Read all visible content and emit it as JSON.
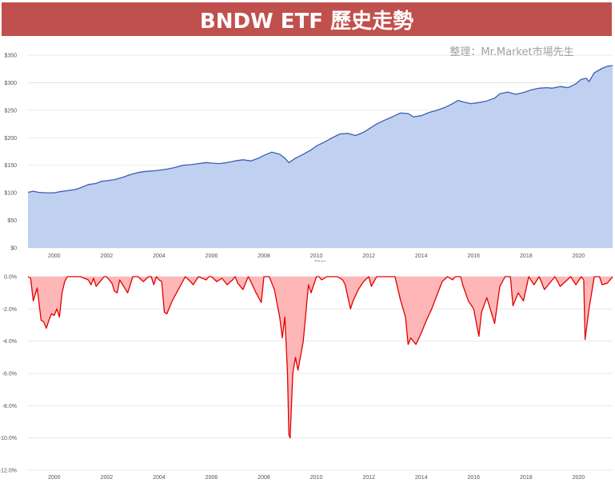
{
  "title": "BNDW ETF 歷史走勢",
  "credit": "整理：Mr.Market市場先生",
  "colors": {
    "title_bg": "#c0504d",
    "price_line": "#3a5fb0",
    "price_fill": "#c0d0f0",
    "dd_line": "#e00000",
    "dd_fill": "#ffb6b6",
    "grid": "#e3e3e3"
  },
  "chart_data": [
    {
      "type": "area",
      "title": "",
      "xlabel": "Year",
      "ylabel": "",
      "xlim": [
        1999.0,
        2021.3
      ],
      "ylim": [
        0,
        350
      ],
      "y_ticks": [
        0,
        50,
        100,
        150,
        200,
        250,
        300,
        350
      ],
      "y_tick_labels": [
        "$0",
        "$50",
        "$100",
        "$150",
        "$200",
        "$250",
        "$300",
        "$350"
      ],
      "x_ticks": [
        2000,
        2002,
        2004,
        2006,
        2008,
        2010,
        2012,
        2014,
        2016,
        2018,
        2020
      ],
      "x_tick_labels": [
        "2000",
        "2002",
        "2004",
        "2006",
        "2008",
        "2010",
        "2012",
        "2014",
        "2016",
        "2018",
        "2020"
      ],
      "grid": true,
      "series": [
        {
          "x": [
            1999.0,
            1999.2,
            1999.4,
            1999.7,
            2000.0,
            2000.2,
            2000.5,
            2000.8,
            2001.0,
            2001.3,
            2001.6,
            2001.8,
            2002.0,
            2002.3,
            2002.6,
            2002.9,
            2003.2,
            2003.5,
            2003.8,
            2004.0,
            2004.3,
            2004.6,
            2004.9,
            2005.2,
            2005.5,
            2005.8,
            2006.0,
            2006.3,
            2006.6,
            2006.9,
            2007.2,
            2007.5,
            2007.8,
            2008.0,
            2008.3,
            2008.6,
            2008.8,
            2008.95,
            2009.2,
            2009.5,
            2009.8,
            2010.0,
            2010.3,
            2010.6,
            2010.9,
            2011.2,
            2011.5,
            2011.8,
            2012.0,
            2012.3,
            2012.6,
            2012.9,
            2013.2,
            2013.5,
            2013.7,
            2014.0,
            2014.3,
            2014.6,
            2014.9,
            2015.2,
            2015.4,
            2015.6,
            2015.9,
            2016.2,
            2016.5,
            2016.8,
            2017.0,
            2017.3,
            2017.6,
            2017.9,
            2018.2,
            2018.5,
            2018.8,
            2019.0,
            2019.3,
            2019.6,
            2019.9,
            2020.1,
            2020.3,
            2020.4,
            2020.6,
            2020.9,
            2021.1,
            2021.3
          ],
          "y": [
            101,
            103,
            101,
            100,
            100,
            102,
            104,
            106,
            109,
            115,
            117,
            121,
            122,
            124,
            128,
            133,
            137,
            139,
            140,
            141,
            143,
            146,
            150,
            151,
            153,
            155,
            154,
            153,
            155,
            158,
            160,
            158,
            163,
            168,
            174,
            170,
            163,
            155,
            163,
            170,
            178,
            185,
            192,
            200,
            207,
            208,
            204,
            210,
            216,
            225,
            232,
            238,
            245,
            244,
            238,
            240,
            246,
            250,
            255,
            262,
            268,
            265,
            262,
            264,
            267,
            272,
            280,
            283,
            279,
            282,
            287,
            290,
            291,
            290,
            293,
            291,
            298,
            306,
            308,
            302,
            318,
            326,
            330,
            331
          ]
        }
      ]
    },
    {
      "type": "area",
      "title": "",
      "xlabel": "",
      "ylabel": "",
      "xlim": [
        1999.0,
        2021.3
      ],
      "ylim": [
        -12,
        0
      ],
      "y_ticks": [
        0,
        -2,
        -4,
        -6,
        -8,
        -10,
        -12
      ],
      "y_tick_labels": [
        "0.0%",
        "-2.0%",
        "-4.0%",
        "-6.0%",
        "-8.0%",
        "-10.0%",
        "-12.0%"
      ],
      "x_ticks": [
        2000,
        2002,
        2004,
        2006,
        2008,
        2010,
        2012,
        2014,
        2016,
        2018,
        2020
      ],
      "x_tick_labels": [
        "2000",
        "2002",
        "2004",
        "2006",
        "2008",
        "2010",
        "2012",
        "2014",
        "2016",
        "2018",
        "2020"
      ],
      "grid": true,
      "series": [
        {
          "x": [
            1999.0,
            1999.1,
            1999.2,
            1999.35,
            1999.5,
            1999.6,
            1999.7,
            1999.8,
            1999.9,
            2000.0,
            2000.1,
            2000.2,
            2000.3,
            2000.4,
            2000.5,
            2000.6,
            2001.0,
            2001.3,
            2001.4,
            2001.5,
            2001.6,
            2001.9,
            2002.0,
            2002.2,
            2002.3,
            2002.4,
            2002.5,
            2002.8,
            2003.0,
            2003.2,
            2003.4,
            2003.6,
            2003.7,
            2003.8,
            2003.9,
            2004.0,
            2004.1,
            2004.2,
            2004.3,
            2004.5,
            2005.0,
            2005.2,
            2005.3,
            2005.5,
            2005.8,
            2005.9,
            2006.0,
            2006.2,
            2006.4,
            2006.6,
            2006.8,
            2006.9,
            2007.0,
            2007.2,
            2007.4,
            2007.5,
            2007.7,
            2007.9,
            2008.0,
            2008.2,
            2008.4,
            2008.6,
            2008.7,
            2008.8,
            2008.9,
            2008.95,
            2009.0,
            2009.1,
            2009.2,
            2009.3,
            2009.5,
            2009.7,
            2009.8,
            2010.0,
            2010.1,
            2010.2,
            2010.4,
            2010.8,
            2011.0,
            2011.1,
            2011.3,
            2011.4,
            2011.6,
            2011.8,
            2012.0,
            2012.1,
            2012.3,
            2013.0,
            2013.2,
            2013.4,
            2013.5,
            2013.6,
            2013.8,
            2014.0,
            2014.2,
            2014.4,
            2014.8,
            2015.0,
            2015.2,
            2015.3,
            2015.5,
            2015.6,
            2015.8,
            2016.0,
            2016.2,
            2016.3,
            2016.5,
            2016.8,
            2017.0,
            2017.2,
            2017.4,
            2017.5,
            2017.7,
            2017.9,
            2018.1,
            2018.3,
            2018.5,
            2018.7,
            2018.9,
            2019.1,
            2019.3,
            2019.5,
            2019.7,
            2019.9,
            2020.1,
            2020.2,
            2020.25,
            2020.4,
            2020.6,
            2020.8,
            2020.9,
            2021.1,
            2021.3
          ],
          "y": [
            0,
            -0.1,
            -1.5,
            -0.7,
            -2.7,
            -2.8,
            -3.2,
            -2.7,
            -2.3,
            -2.4,
            -2.0,
            -2.5,
            -1.0,
            -0.3,
            0,
            0,
            0,
            -0.2,
            -0.5,
            -0.1,
            -0.6,
            0,
            0,
            -0.4,
            -0.9,
            -1.0,
            -0.2,
            -1.0,
            0,
            0,
            -0.3,
            0,
            0,
            -0.5,
            0,
            -0.2,
            -0.3,
            -2.2,
            -2.3,
            -1.5,
            0,
            -0.3,
            -0.5,
            0,
            -0.2,
            0,
            0,
            -0.3,
            -0.1,
            -0.5,
            -0.2,
            0,
            -0.4,
            -0.8,
            0,
            -0.3,
            -1.0,
            -1.6,
            0,
            0,
            -0.8,
            -2.5,
            -3.8,
            -2.5,
            -6.0,
            -9.8,
            -10.0,
            -6.0,
            -5.0,
            -5.8,
            -4.0,
            -0.5,
            -1.0,
            0,
            0,
            -0.2,
            0,
            0,
            -0.2,
            -0.5,
            -2.0,
            -1.5,
            -0.8,
            -0.3,
            0,
            -0.6,
            0,
            0,
            -1.4,
            -2.5,
            -4.2,
            -3.8,
            -4.2,
            -3.5,
            -2.7,
            -2.0,
            -0.3,
            0,
            -0.2,
            0,
            0,
            -0.6,
            -1.5,
            -2.0,
            -3.7,
            -2.2,
            -1.3,
            -2.9,
            -0.6,
            0,
            0,
            -1.8,
            -1.0,
            -1.5,
            0,
            -0.5,
            0,
            -0.8,
            -0.4,
            0,
            -0.6,
            -0.3,
            0,
            -0.5,
            0,
            -0.2,
            -3.9,
            -2.0,
            0,
            0,
            -0.5,
            -0.4,
            0
          ]
        }
      ]
    }
  ]
}
